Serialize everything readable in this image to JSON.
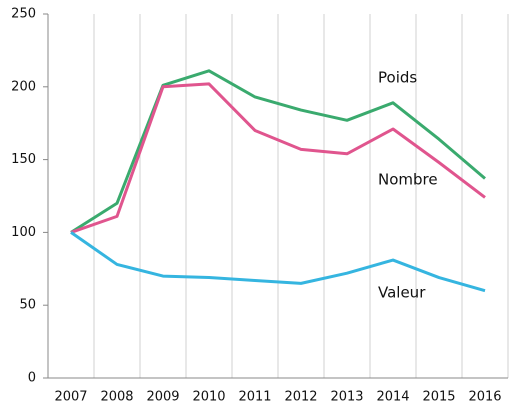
{
  "chart_data": {
    "type": "line",
    "categories": [
      "2007",
      "2008",
      "2009",
      "2010",
      "2011",
      "2012",
      "2013",
      "2014",
      "2015",
      "2016"
    ],
    "series": [
      {
        "name": "Poids",
        "color": "#3aaa6e",
        "values": [
          100,
          120,
          201,
          211,
          193,
          184,
          177,
          189,
          164,
          137
        ]
      },
      {
        "name": "Nombre",
        "color": "#e0558e",
        "values": [
          100,
          111,
          200,
          202,
          170,
          157,
          154,
          171,
          148,
          124
        ]
      },
      {
        "name": "Valeur",
        "color": "#35b5e0",
        "values": [
          100,
          78,
          70,
          69,
          67,
          65,
          72,
          81,
          69,
          60
        ]
      }
    ],
    "ylim": [
      0,
      250
    ],
    "yticks": [
      0,
      50,
      100,
      150,
      200,
      250
    ],
    "grid": "x"
  }
}
